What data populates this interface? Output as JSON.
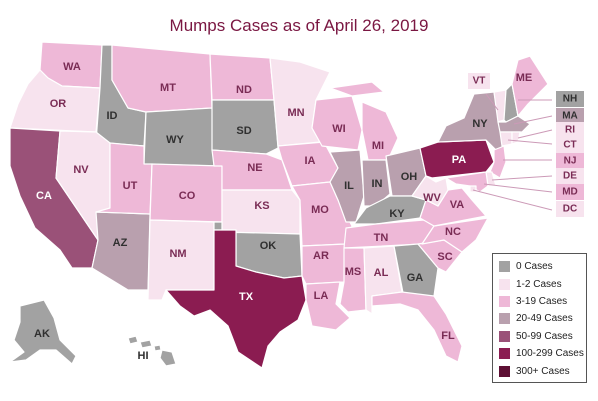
{
  "title": "Mumps Cases as of April 26, 2019",
  "colors": {
    "c0": "#a2a2a2",
    "c1": "#f7e3ee",
    "c3": "#eeb8d7",
    "c20": "#b9a0ae",
    "c50": "#9a5178",
    "c100": "#8b1c51",
    "c300": "#5d0f34"
  },
  "legend": [
    {
      "key": "c0",
      "label": "0 Cases"
    },
    {
      "key": "c1",
      "label": "1-2 Cases"
    },
    {
      "key": "c3",
      "label": "3-19 Cases"
    },
    {
      "key": "c20",
      "label": "20-49 Cases"
    },
    {
      "key": "c50",
      "label": "50-99 Cases"
    },
    {
      "key": "c100",
      "label": "100-299 Cases"
    },
    {
      "key": "c300",
      "label": "300+ Cases"
    }
  ],
  "states": [
    {
      "abbr": "WA",
      "category": "c3"
    },
    {
      "abbr": "OR",
      "category": "c1"
    },
    {
      "abbr": "CA",
      "category": "c50"
    },
    {
      "abbr": "ID",
      "category": "c0"
    },
    {
      "abbr": "NV",
      "category": "c1"
    },
    {
      "abbr": "AZ",
      "category": "c20"
    },
    {
      "abbr": "MT",
      "category": "c3"
    },
    {
      "abbr": "WY",
      "category": "c0"
    },
    {
      "abbr": "UT",
      "category": "c3"
    },
    {
      "abbr": "CO",
      "category": "c3"
    },
    {
      "abbr": "NM",
      "category": "c1"
    },
    {
      "abbr": "ND",
      "category": "c3"
    },
    {
      "abbr": "SD",
      "category": "c0"
    },
    {
      "abbr": "NE",
      "category": "c3"
    },
    {
      "abbr": "KS",
      "category": "c1"
    },
    {
      "abbr": "OK",
      "category": "c0"
    },
    {
      "abbr": "TX",
      "category": "c100"
    },
    {
      "abbr": "MN",
      "category": "c1"
    },
    {
      "abbr": "IA",
      "category": "c3"
    },
    {
      "abbr": "MO",
      "category": "c3"
    },
    {
      "abbr": "AR",
      "category": "c3"
    },
    {
      "abbr": "LA",
      "category": "c3"
    },
    {
      "abbr": "WI",
      "category": "c3"
    },
    {
      "abbr": "IL",
      "category": "c20"
    },
    {
      "abbr": "MI",
      "category": "c3"
    },
    {
      "abbr": "IN",
      "category": "c20"
    },
    {
      "abbr": "OH",
      "category": "c20"
    },
    {
      "abbr": "KY",
      "category": "c0"
    },
    {
      "abbr": "TN",
      "category": "c3"
    },
    {
      "abbr": "MS",
      "category": "c3"
    },
    {
      "abbr": "AL",
      "category": "c1"
    },
    {
      "abbr": "GA",
      "category": "c0"
    },
    {
      "abbr": "FL",
      "category": "c3"
    },
    {
      "abbr": "SC",
      "category": "c3"
    },
    {
      "abbr": "NC",
      "category": "c3"
    },
    {
      "abbr": "VA",
      "category": "c3"
    },
    {
      "abbr": "WV",
      "category": "c1"
    },
    {
      "abbr": "PA",
      "category": "c100"
    },
    {
      "abbr": "NY",
      "category": "c20"
    },
    {
      "abbr": "VT",
      "category": "c1"
    },
    {
      "abbr": "ME",
      "category": "c3"
    },
    {
      "abbr": "NH",
      "category": "c0"
    },
    {
      "abbr": "MA",
      "category": "c20"
    },
    {
      "abbr": "RI",
      "category": "c1"
    },
    {
      "abbr": "CT",
      "category": "c1"
    },
    {
      "abbr": "NJ",
      "category": "c3"
    },
    {
      "abbr": "DE",
      "category": "c1"
    },
    {
      "abbr": "MD",
      "category": "c3"
    },
    {
      "abbr": "DC",
      "category": "c1"
    },
    {
      "abbr": "AK",
      "category": "c0"
    },
    {
      "abbr": "HI",
      "category": "c0"
    }
  ]
}
